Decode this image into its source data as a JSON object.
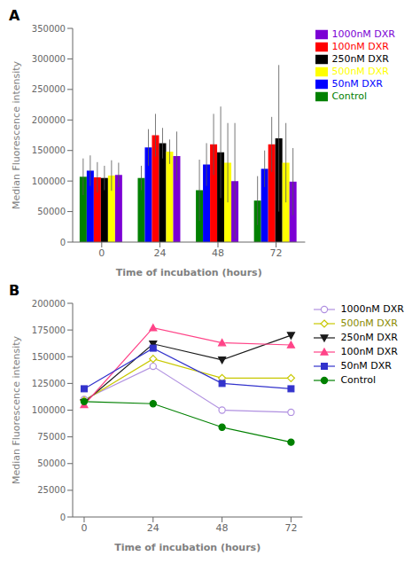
{
  "chart_data": [
    {
      "type": "bar",
      "annotations": [
        "A"
      ],
      "x_label": "Time of incubation (hours)",
      "y_label": "Median Fluorescence intensity",
      "categories": [
        "0",
        "24",
        "48",
        "72"
      ],
      "series": [
        {
          "name": "Control",
          "color": "#008000",
          "values": [
            107000,
            105000,
            85000,
            68000
          ],
          "errors": [
            30000,
            20000,
            50000,
            40000
          ]
        },
        {
          "name": "50nM DXR",
          "color": "#0000ff",
          "values": [
            117000,
            155000,
            127000,
            120000
          ],
          "errors": [
            25000,
            30000,
            35000,
            30000
          ]
        },
        {
          "name": "100nM DXR",
          "color": "#ff0000",
          "values": [
            106000,
            175000,
            160000,
            160000
          ],
          "errors": [
            25000,
            35000,
            50000,
            45000
          ]
        },
        {
          "name": "250nM DXR",
          "color": "#000000",
          "values": [
            105000,
            162000,
            147000,
            170000
          ],
          "errors": [
            20000,
            25000,
            75000,
            120000
          ]
        },
        {
          "name": "500nM DXR",
          "color": "#ffff00",
          "values": [
            109000,
            148000,
            130000,
            130000
          ],
          "errors": [
            25000,
            20000,
            65000,
            65000
          ]
        },
        {
          "name": "1000nM DXR",
          "color": "#7b00d4",
          "values": [
            110000,
            141000,
            100000,
            99000
          ],
          "errors": [
            20000,
            40000,
            95000,
            55000
          ]
        }
      ],
      "ylim": [
        0,
        350000
      ],
      "yticks": [
        0,
        50000,
        100000,
        150000,
        200000,
        250000,
        300000,
        350000
      ],
      "grid": false,
      "legend": "right"
    },
    {
      "type": "line",
      "annotations": [
        "B"
      ],
      "x_label": "Time of incubation (hours)",
      "y_label": "Median Fluorescence intensity",
      "x": [
        0,
        24,
        48,
        72
      ],
      "series": [
        {
          "name": "1000nM DXR",
          "color": "#b090e0",
          "marker": "circle-open",
          "values": [
            110000,
            141000,
            100000,
            98000
          ]
        },
        {
          "name": "500nM DXR",
          "color": "#c8c800",
          "marker": "diamond-open",
          "values": [
            109000,
            148000,
            130000,
            130000
          ]
        },
        {
          "name": "250nM DXR",
          "color": "#1a1a1a",
          "marker": "triangle-down",
          "values": [
            107000,
            162000,
            147000,
            170000
          ]
        },
        {
          "name": "100nM DXR",
          "color": "#ff4488",
          "marker": "triangle-up",
          "values": [
            105000,
            177000,
            163000,
            161000
          ]
        },
        {
          "name": "50nM DXR",
          "color": "#3333cc",
          "marker": "square",
          "values": [
            120000,
            158000,
            125000,
            120000
          ]
        },
        {
          "name": "Control",
          "color": "#008000",
          "marker": "circle",
          "values": [
            108000,
            106000,
            84000,
            70000
          ]
        }
      ],
      "xlim": [
        -4,
        76
      ],
      "xticks": [
        0,
        24,
        48,
        72
      ],
      "ylim": [
        0,
        200000
      ],
      "yticks": [
        0,
        25000,
        50000,
        75000,
        100000,
        125000,
        150000,
        175000,
        200000
      ],
      "grid": false,
      "legend": "right"
    }
  ]
}
